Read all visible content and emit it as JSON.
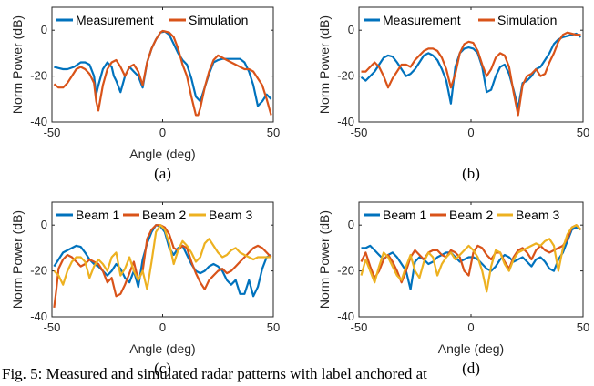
{
  "caption": "Fig. 5: Measured and simulated radar patterns with label anchored at",
  "chart_data": [
    {
      "type": "line",
      "sublabel": "(a)",
      "xlabel": "Angle (deg)",
      "ylabel": "Norm Power (dB)",
      "xlim": [
        -50,
        50
      ],
      "ylim": [
        -40,
        10
      ],
      "xticks": [
        "-50",
        "0",
        "50"
      ],
      "yticks": [
        "0",
        "-20",
        "-40"
      ],
      "legend": "top",
      "series": [
        {
          "name": "Measurement",
          "color": "#0072BD",
          "x": [
            -49,
            -47,
            -45,
            -43,
            -40,
            -37,
            -35,
            -33,
            -31,
            -30,
            -29,
            -27,
            -25,
            -23,
            -22,
            -21,
            -19,
            -17,
            -15,
            -13,
            -11,
            -9,
            -7,
            -5,
            -3,
            -1,
            1,
            3,
            5,
            7,
            9,
            11,
            13,
            15,
            17,
            19,
            21,
            23,
            25,
            27,
            29,
            31,
            33,
            35,
            37,
            39,
            41,
            43,
            45,
            47,
            49
          ],
          "y": [
            -16,
            -16.5,
            -17,
            -17,
            -16,
            -14,
            -14,
            -15,
            -20,
            -28,
            -24,
            -17,
            -14,
            -16,
            -20,
            -22,
            -27,
            -20,
            -16,
            -18,
            -20,
            -25,
            -14,
            -8,
            -4,
            -1,
            -0.5,
            -2,
            -6,
            -10,
            -13,
            -15,
            -21,
            -29,
            -31,
            -25,
            -19,
            -14,
            -13,
            -12.5,
            -12.5,
            -12.5,
            -12.5,
            -12.5,
            -14,
            -18,
            -24,
            -33,
            -31,
            -28,
            -30
          ]
        },
        {
          "name": "Simulation",
          "color": "#D95319",
          "x": [
            -49,
            -47,
            -45,
            -43,
            -41,
            -39,
            -37,
            -35,
            -33,
            -31,
            -30,
            -29,
            -27,
            -25,
            -23,
            -21,
            -19,
            -17,
            -15,
            -13,
            -11,
            -9,
            -7,
            -5,
            -3,
            -1,
            0,
            1,
            3,
            5,
            7,
            9,
            11,
            13,
            15,
            16,
            17,
            19,
            21,
            23,
            25,
            27,
            29,
            31,
            33,
            35,
            37,
            39,
            41,
            43,
            45,
            47,
            49
          ],
          "y": [
            -23.5,
            -25,
            -25,
            -23,
            -20,
            -17,
            -16,
            -17,
            -19,
            -23,
            -31,
            -35,
            -24,
            -17,
            -14,
            -13,
            -16,
            -20,
            -16,
            -15,
            -18,
            -24,
            -14,
            -8,
            -4,
            -1,
            -0.3,
            -0.5,
            -1,
            -3,
            -8,
            -15,
            -20,
            -29,
            -37,
            -37,
            -34,
            -25,
            -18,
            -13,
            -11,
            -12,
            -13,
            -14,
            -15,
            -16,
            -17,
            -17,
            -18,
            -21,
            -24,
            -30,
            -37
          ]
        }
      ]
    },
    {
      "type": "line",
      "sublabel": "(b)",
      "xlabel": "",
      "ylabel": "Norm Power (dB)",
      "xlim": [
        -50,
        50
      ],
      "ylim": [
        -40,
        10
      ],
      "xticks": [
        "-50",
        "0",
        "50"
      ],
      "yticks": [
        "0",
        "-20",
        "-40"
      ],
      "legend": "top",
      "series": [
        {
          "name": "Measurement",
          "color": "#0072BD",
          "x": [
            -49,
            -47,
            -45,
            -43,
            -41,
            -39,
            -37,
            -35,
            -33,
            -31,
            -29,
            -27,
            -25,
            -23,
            -21,
            -19,
            -17,
            -15,
            -13,
            -11,
            -9,
            -7,
            -5,
            -3,
            -1,
            1,
            3,
            5,
            7,
            9,
            11,
            13,
            15,
            17,
            19,
            21,
            23,
            25,
            27,
            29,
            31,
            33,
            35,
            37,
            39,
            41,
            43,
            45,
            47,
            49
          ],
          "y": [
            -20.5,
            -22,
            -20,
            -18,
            -15,
            -12,
            -11,
            -11.5,
            -14,
            -17,
            -20,
            -19,
            -17,
            -14,
            -11,
            -10,
            -11,
            -13,
            -17,
            -22,
            -32,
            -16,
            -10,
            -8,
            -7.5,
            -8,
            -10,
            -16,
            -27,
            -26,
            -20,
            -16,
            -15,
            -19,
            -26,
            -34,
            -23,
            -22,
            -20,
            -17,
            -16,
            -13,
            -10,
            -6,
            -4,
            -3,
            -2.5,
            -2,
            -1.5,
            -3
          ]
        },
        {
          "name": "Simulation",
          "color": "#D95319",
          "x": [
            -49,
            -47,
            -45,
            -43,
            -41,
            -39,
            -37,
            -35,
            -33,
            -31,
            -29,
            -27,
            -25,
            -23,
            -21,
            -19,
            -17,
            -15,
            -13,
            -11,
            -9,
            -7,
            -5,
            -3,
            -1,
            1,
            3,
            5,
            7,
            9,
            11,
            13,
            15,
            17,
            19,
            21,
            23,
            25,
            27,
            29,
            31,
            33,
            35,
            37,
            39,
            41,
            43,
            45,
            47,
            49
          ],
          "y": [
            -18,
            -18,
            -16,
            -14,
            -16,
            -20,
            -25,
            -21,
            -18,
            -15,
            -15,
            -16,
            -13,
            -11,
            -9,
            -8,
            -8,
            -9,
            -12,
            -17,
            -25,
            -19,
            -10,
            -6,
            -5,
            -5.5,
            -9,
            -15,
            -20,
            -17,
            -12,
            -10,
            -11,
            -16,
            -27,
            -37,
            -24,
            -20,
            -19,
            -17,
            -20,
            -19,
            -14,
            -10,
            -5,
            -2,
            -1,
            -1.5,
            -2,
            -2
          ]
        }
      ]
    },
    {
      "type": "line",
      "sublabel": "(c)",
      "xlabel": "Angle (deg)",
      "ylabel": "Norm Power (dB)",
      "xlim": [
        -50,
        50
      ],
      "ylim": [
        -40,
        10
      ],
      "xticks": [
        "-50",
        "0",
        "50"
      ],
      "yticks": [
        "0",
        "-20",
        "-40"
      ],
      "legend": "top",
      "series": [
        {
          "name": "Beam 1",
          "color": "#0072BD",
          "x": [
            -49,
            -47,
            -45,
            -43,
            -41,
            -39,
            -37,
            -35,
            -33,
            -31,
            -29,
            -27,
            -25,
            -23,
            -21,
            -19,
            -17,
            -15,
            -13,
            -11,
            -9,
            -7,
            -5,
            -3,
            -1,
            1,
            3,
            5,
            7,
            9,
            11,
            13,
            15,
            17,
            19,
            21,
            23,
            25,
            27,
            29,
            31,
            33,
            35,
            37,
            39,
            41,
            43,
            45,
            47,
            49
          ],
          "y": [
            -18,
            -15,
            -12,
            -11,
            -10,
            -9,
            -9.5,
            -12,
            -15,
            -17,
            -18,
            -20,
            -22,
            -20,
            -17,
            -19,
            -23,
            -25,
            -20,
            -27,
            -15,
            -8,
            -3,
            0,
            -0.5,
            -3,
            -10,
            -13,
            -10,
            -9,
            -13,
            -17,
            -20,
            -21,
            -20,
            -18,
            -17,
            -18,
            -20,
            -24,
            -26,
            -24,
            -30,
            -30,
            -24,
            -31,
            -27,
            -19,
            -14,
            -13
          ]
        },
        {
          "name": "Beam 2",
          "color": "#D95319",
          "x": [
            -49,
            -48,
            -47,
            -45,
            -43,
            -41,
            -39,
            -37,
            -35,
            -33,
            -31,
            -29,
            -27,
            -25,
            -23,
            -21,
            -19,
            -17,
            -15,
            -13,
            -11,
            -9,
            -7,
            -5,
            -3,
            -1,
            1,
            3,
            5,
            7,
            9,
            11,
            13,
            15,
            17,
            19,
            21,
            23,
            25,
            27,
            29,
            31,
            33,
            35,
            37,
            39,
            41,
            43,
            45,
            47,
            49
          ],
          "y": [
            -36,
            -28,
            -19,
            -15,
            -13,
            -14,
            -16,
            -18,
            -17,
            -15,
            -16,
            -17,
            -20,
            -25,
            -23,
            -31,
            -30,
            -26,
            -21,
            -16,
            -24,
            -20,
            -6,
            -2,
            0,
            0,
            -1,
            -4,
            -10,
            -11,
            -9,
            -10,
            -16,
            -21,
            -25,
            -28,
            -24,
            -22,
            -20,
            -19,
            -21,
            -20,
            -18,
            -16,
            -14,
            -12,
            -10,
            -9,
            -10,
            -12,
            -14
          ]
        },
        {
          "name": "Beam 3",
          "color": "#EDB120",
          "x": [
            -49,
            -47,
            -45,
            -43,
            -41,
            -39,
            -37,
            -35,
            -33,
            -31,
            -29,
            -27,
            -25,
            -23,
            -21,
            -19,
            -17,
            -15,
            -13,
            -11,
            -9,
            -7,
            -5,
            -3,
            -1,
            1,
            3,
            5,
            7,
            9,
            11,
            13,
            15,
            17,
            19,
            21,
            23,
            25,
            27,
            29,
            31,
            33,
            35,
            37,
            39,
            41,
            43,
            45,
            47,
            49
          ],
          "y": [
            -20,
            -22,
            -26,
            -20,
            -16,
            -14,
            -14,
            -16,
            -23,
            -18,
            -15,
            -17,
            -20,
            -14,
            -12,
            -22,
            -19,
            -14,
            -20,
            -24,
            -20,
            -28,
            -16,
            -3,
            0,
            -2,
            -8,
            -17,
            -11,
            -7,
            -9,
            -12,
            -16,
            -14,
            -8,
            -6,
            -9,
            -12,
            -14,
            -13,
            -11,
            -10,
            -12,
            -13,
            -14,
            -15,
            -14,
            -14,
            -14,
            -14
          ]
        }
      ]
    },
    {
      "type": "line",
      "sublabel": "(d)",
      "xlabel": "Angle (deg)",
      "ylabel": "Norm Power (dB)",
      "xlim": [
        -50,
        50
      ],
      "ylim": [
        -40,
        10
      ],
      "xticks": [
        "-50",
        "0",
        "50"
      ],
      "yticks": [
        "0",
        "-20",
        "-40"
      ],
      "legend": "top",
      "series": [
        {
          "name": "Beam 1",
          "color": "#0072BD",
          "x": [
            -49,
            -47,
            -45,
            -43,
            -41,
            -39,
            -37,
            -35,
            -33,
            -31,
            -29,
            -27,
            -25,
            -23,
            -21,
            -19,
            -17,
            -15,
            -13,
            -11,
            -9,
            -7,
            -5,
            -3,
            -1,
            1,
            3,
            5,
            7,
            9,
            11,
            13,
            15,
            17,
            19,
            21,
            23,
            25,
            27,
            29,
            31,
            33,
            35,
            37,
            39,
            41,
            43,
            45,
            47,
            49
          ],
          "y": [
            -10,
            -10,
            -9,
            -11,
            -13,
            -15,
            -13,
            -12,
            -14,
            -17,
            -20,
            -28,
            -16,
            -14,
            -15,
            -17,
            -16,
            -14,
            -13,
            -12,
            -12,
            -14,
            -16,
            -15,
            -14,
            -14,
            -15,
            -17,
            -19,
            -20,
            -18,
            -15,
            -13,
            -14,
            -16,
            -15,
            -14,
            -16,
            -18,
            -15,
            -14,
            -16,
            -19,
            -20,
            -15,
            -12,
            -7,
            -2,
            -1,
            -2
          ]
        },
        {
          "name": "Beam 2",
          "color": "#D95319",
          "x": [
            -49,
            -47,
            -45,
            -43,
            -41,
            -39,
            -37,
            -35,
            -33,
            -31,
            -29,
            -27,
            -25,
            -23,
            -21,
            -19,
            -17,
            -15,
            -13,
            -11,
            -9,
            -7,
            -5,
            -3,
            -1,
            1,
            3,
            5,
            7,
            9,
            11,
            13,
            15,
            17,
            19,
            21,
            23,
            25,
            27,
            29,
            31,
            33,
            35,
            37,
            39,
            41,
            43,
            45,
            47,
            49
          ],
          "y": [
            -16,
            -12,
            -18,
            -23,
            -20,
            -15,
            -13,
            -16,
            -20,
            -25,
            -20,
            -14,
            -11,
            -13,
            -15,
            -12,
            -11,
            -11,
            -13,
            -14,
            -11,
            -12,
            -14,
            -20,
            -22,
            -12,
            -9,
            -10,
            -13,
            -15,
            -12,
            -12,
            -16,
            -19,
            -14,
            -11,
            -10,
            -12,
            -15,
            -11,
            -9,
            -11,
            -12,
            -11,
            -10,
            -9,
            -6,
            -1,
            0,
            -2
          ]
        },
        {
          "name": "Beam 3",
          "color": "#EDB120",
          "x": [
            -49,
            -47,
            -45,
            -43,
            -41,
            -39,
            -37,
            -35,
            -33,
            -31,
            -29,
            -27,
            -25,
            -23,
            -21,
            -19,
            -17,
            -15,
            -13,
            -11,
            -9,
            -7,
            -5,
            -3,
            -1,
            1,
            3,
            5,
            7,
            9,
            11,
            13,
            15,
            17,
            19,
            21,
            23,
            25,
            27,
            29,
            31,
            33,
            35,
            37,
            39,
            41,
            43,
            45,
            47,
            49
          ],
          "y": [
            -22,
            -15,
            -20,
            -25,
            -18,
            -12,
            -14,
            -18,
            -22,
            -24,
            -18,
            -13,
            -20,
            -23,
            -16,
            -12,
            -14,
            -22,
            -17,
            -14,
            -12,
            -15,
            -13,
            -11,
            -9,
            -11,
            -14,
            -20,
            -29,
            -18,
            -11,
            -12,
            -17,
            -20,
            -15,
            -12,
            -11,
            -10,
            -9,
            -8,
            -9,
            -7,
            -6,
            -9,
            -20,
            -10,
            -4,
            -1,
            0,
            -2
          ]
        }
      ]
    }
  ]
}
